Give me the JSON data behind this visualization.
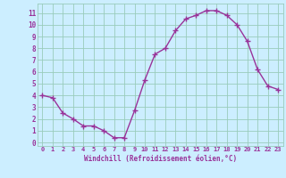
{
  "x": [
    0,
    1,
    2,
    3,
    4,
    5,
    6,
    7,
    8,
    9,
    10,
    11,
    12,
    13,
    14,
    15,
    16,
    17,
    18,
    19,
    20,
    21,
    22,
    23
  ],
  "y": [
    4.0,
    3.8,
    2.5,
    2.0,
    1.4,
    1.4,
    1.0,
    0.4,
    0.4,
    2.7,
    5.3,
    7.5,
    8.0,
    9.5,
    10.5,
    10.8,
    11.2,
    11.2,
    10.8,
    10.0,
    8.6,
    6.2,
    4.8,
    4.5
  ],
  "line_color": "#993399",
  "marker": "+",
  "marker_color": "#993399",
  "bg_color": "#cceeff",
  "grid_color": "#99ccbb",
  "xlabel": "Windchill (Refroidissement éolien,°C)",
  "xlabel_color": "#993399",
  "tick_color": "#993399",
  "xlim": [
    -0.5,
    23.5
  ],
  "ylim": [
    -0.3,
    11.8
  ],
  "yticks": [
    0,
    1,
    2,
    3,
    4,
    5,
    6,
    7,
    8,
    9,
    10,
    11
  ],
  "xticks": [
    0,
    1,
    2,
    3,
    4,
    5,
    6,
    7,
    8,
    9,
    10,
    11,
    12,
    13,
    14,
    15,
    16,
    17,
    18,
    19,
    20,
    21,
    22,
    23
  ]
}
